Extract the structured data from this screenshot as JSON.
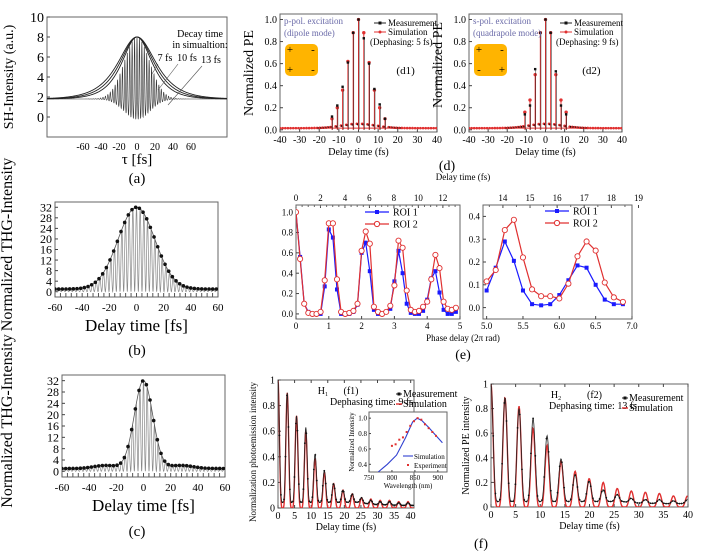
{
  "panel_labels": {
    "a": "(a)",
    "b": "(b)",
    "c": "(c)",
    "d": "(d)",
    "e": "(e)",
    "f": "(f)"
  },
  "chart_data": [
    {
      "id": "a",
      "type": "line",
      "title": "",
      "xlabel": "τ [fs]",
      "ylabel": "SH-Intensity (a.u.)",
      "xlim": [
        -100,
        100
      ],
      "ylim": [
        -2,
        10
      ],
      "xticks": [
        -60,
        -40,
        -20,
        0,
        20,
        40,
        60
      ],
      "yticks": [
        0,
        2,
        4,
        6,
        8,
        10
      ],
      "annotations": [
        "Decay time",
        "in simualtion:",
        "7 fs",
        "10 fs",
        "13 fs"
      ],
      "baseline": 1.8,
      "peak": 8,
      "envelope_decay_fs": [
        7,
        10,
        13
      ],
      "fringe_period_fs": 2.7
    },
    {
      "id": "b",
      "type": "line",
      "xlabel": "Delay time [fs]",
      "ylabel": "Normalized THG-Intensity",
      "xlim": [
        -60,
        60
      ],
      "ylim": [
        -2,
        34
      ],
      "xticks": [
        -60,
        -40,
        -20,
        0,
        20,
        40,
        60
      ],
      "yticks": [
        0,
        4,
        8,
        12,
        16,
        20,
        24,
        28,
        32
      ],
      "baseline": 1,
      "peak": 32,
      "envelope_fwhm_fs": 32,
      "fringe_period_fs": 2.7
    },
    {
      "id": "c",
      "type": "line",
      "xlabel": "Delay time [fs]",
      "ylabel": "Normalized THG-Intensity",
      "xlim": [
        -60,
        60
      ],
      "ylim": [
        -2,
        34
      ],
      "xticks": [
        -60,
        -40,
        -20,
        0,
        20,
        40,
        60
      ],
      "yticks": [
        0,
        4,
        8,
        12,
        16,
        20,
        24,
        28,
        32
      ],
      "baseline": 1,
      "peak": 32,
      "envelope_fwhm_fs": 16,
      "fringe_period_fs": 2.7
    },
    {
      "id": "d1",
      "type": "line",
      "tag": "(d1)",
      "xlabel": "Delay time (fs)",
      "ylabel": "Normalized PE",
      "xlim": [
        -40,
        40
      ],
      "ylim": [
        -0.02,
        1.05
      ],
      "xticks": [
        -40,
        -30,
        -20,
        -10,
        0,
        10,
        20,
        30,
        40
      ],
      "yticks": [
        0.0,
        0.2,
        0.4,
        0.6,
        0.8,
        1.0
      ],
      "inset_text": [
        "p-pol. excitation",
        "(dipole mode)"
      ],
      "inset_signs": [
        "+",
        "-",
        "+",
        "-"
      ],
      "legend": [
        "Measurement",
        "Simulation",
        "(Dephasing: 5 fs)"
      ],
      "peaks": {
        "x": [
          -13.5,
          -10.8,
          -8.1,
          -5.4,
          -2.7,
          0,
          2.7,
          5.4,
          8.1,
          10.8,
          13.5
        ],
        "Measurement": [
          0.12,
          0.22,
          0.39,
          0.61,
          0.88,
          1.0,
          0.83,
          0.6,
          0.37,
          0.23,
          0.1
        ],
        "Simulation": [
          0.1,
          0.2,
          0.36,
          0.62,
          0.88,
          1.0,
          0.88,
          0.61,
          0.36,
          0.2,
          0.1
        ]
      }
    },
    {
      "id": "d2",
      "type": "line",
      "tag": "(d2)",
      "xlabel": "Delay time (fs)",
      "ylabel": "Normalized PE",
      "xlim": [
        -40,
        40
      ],
      "ylim": [
        -0.02,
        1.05
      ],
      "xticks": [
        -40,
        -30,
        -20,
        -10,
        0,
        10,
        20,
        30,
        40
      ],
      "yticks": [
        0.0,
        0.2,
        0.4,
        0.6,
        0.8,
        1.0
      ],
      "inset_text": [
        "s-pol. excitation",
        "(quadrapole mode)"
      ],
      "inset_signs": [
        "+",
        "-",
        "-",
        "+"
      ],
      "legend": [
        "Measurement",
        "Simulation",
        "(Dephasing: 9 fs)"
      ],
      "peaks": {
        "x": [
          -10.8,
          -8.1,
          -5.4,
          -2.7,
          0,
          2.7,
          5.4,
          8.1,
          10.8
        ],
        "Measurement": [
          0.14,
          0.22,
          0.55,
          0.88,
          1.0,
          0.88,
          0.53,
          0.22,
          0.14
        ],
        "Simulation": [
          0.16,
          0.27,
          0.5,
          0.88,
          1.0,
          0.88,
          0.5,
          0.27,
          0.16
        ]
      }
    },
    {
      "id": "e1",
      "type": "line",
      "xlabel_top": "Delay time (fs)",
      "xlabel": "Phase delay (2π rad)",
      "xlim": [
        0,
        5
      ],
      "ylim": [
        -0.05,
        1.07
      ],
      "xticks": [
        0,
        1,
        2,
        3,
        4,
        5
      ],
      "xticks_top": [
        0,
        2,
        4,
        6,
        8,
        10,
        12
      ],
      "yticks": [
        0.0,
        0.2,
        0.4,
        0.6,
        0.8,
        1.0
      ],
      "series": [
        {
          "name": "ROI 1",
          "color": "#1a1aff",
          "x": [
            0,
            0.125,
            0.25,
            0.375,
            0.5,
            0.625,
            0.75,
            0.875,
            1.0,
            1.125,
            1.25,
            1.375,
            1.5,
            1.625,
            1.75,
            1.875,
            2.0,
            2.125,
            2.25,
            2.375,
            2.5,
            2.625,
            2.75,
            2.875,
            3.0,
            3.125,
            3.25,
            3.375,
            3.5,
            3.625,
            3.75,
            3.875,
            4.0,
            4.125,
            4.25,
            4.375,
            4.5,
            4.625,
            4.75,
            4.875
          ],
          "y": [
            1.0,
            0.56,
            0.1,
            0.02,
            0.0,
            0.0,
            0.0,
            0.27,
            0.83,
            0.75,
            0.24,
            0.0,
            0.0,
            0.0,
            0.02,
            0.09,
            0.6,
            0.7,
            0.42,
            0.04,
            0.0,
            0.0,
            0.02,
            0.05,
            0.32,
            0.62,
            0.4,
            0.1,
            0.01,
            0.0,
            0.0,
            0.03,
            0.14,
            0.35,
            0.42,
            0.21,
            0.04,
            0.0,
            0.0,
            0.02
          ]
        },
        {
          "name": "ROI 2",
          "color": "#e03030",
          "x": [
            0,
            0.125,
            0.25,
            0.375,
            0.5,
            0.625,
            0.75,
            0.875,
            1.0,
            1.125,
            1.25,
            1.375,
            1.5,
            1.625,
            1.75,
            1.875,
            2.0,
            2.125,
            2.25,
            2.375,
            2.5,
            2.625,
            2.75,
            2.875,
            3.0,
            3.125,
            3.25,
            3.375,
            3.5,
            3.625,
            3.75,
            3.875,
            4.0,
            4.125,
            4.25,
            4.375,
            4.5,
            4.625,
            4.75,
            4.875
          ],
          "y": [
            1.0,
            0.54,
            0.1,
            0.01,
            0.0,
            0.0,
            0.02,
            0.33,
            0.89,
            0.89,
            0.34,
            0.02,
            0.0,
            0.01,
            0.03,
            0.1,
            0.62,
            0.81,
            0.69,
            0.07,
            0.02,
            0.0,
            0.02,
            0.08,
            0.28,
            0.72,
            0.65,
            0.23,
            0.04,
            0.02,
            0.03,
            0.07,
            0.12,
            0.34,
            0.58,
            0.45,
            0.12,
            0.05,
            0.04,
            0.06
          ]
        }
      ]
    },
    {
      "id": "e2",
      "type": "line",
      "xlim": [
        4.95,
        7.0
      ],
      "ylim": [
        -0.05,
        0.45
      ],
      "xticks": [
        5.0,
        5.5,
        6.0,
        6.5,
        7.0
      ],
      "xticks_top": [
        14,
        15,
        16,
        17,
        18,
        19
      ],
      "yticks": [
        0.0,
        0.1,
        0.2,
        0.3,
        0.4
      ],
      "series": [
        {
          "name": "ROI 1",
          "color": "#1a1aff",
          "x": [
            5.0,
            5.125,
            5.25,
            5.375,
            5.5,
            5.625,
            5.75,
            5.875,
            6.0,
            6.125,
            6.25,
            6.375,
            6.5,
            6.625,
            6.75,
            6.875
          ],
          "y": [
            0.075,
            0.175,
            0.29,
            0.205,
            0.075,
            0.015,
            0.01,
            0.015,
            0.055,
            0.12,
            0.185,
            0.175,
            0.1,
            0.035,
            0.015,
            0.015
          ]
        },
        {
          "name": "ROI 2",
          "color": "#e03030",
          "x": [
            5.0,
            5.125,
            5.25,
            5.375,
            5.5,
            5.625,
            5.75,
            5.875,
            6.0,
            6.125,
            6.25,
            6.375,
            6.5,
            6.625,
            6.75,
            6.875
          ],
          "y": [
            0.115,
            0.165,
            0.34,
            0.385,
            0.22,
            0.08,
            0.05,
            0.05,
            0.04,
            0.105,
            0.225,
            0.29,
            0.25,
            0.11,
            0.045,
            0.025
          ]
        }
      ]
    },
    {
      "id": "f1",
      "type": "line",
      "tag": "(f1)",
      "molecule": "H",
      "molecule_sub": "1",
      "dephasing_text": "Dephasing time: 9 fs",
      "xlabel": "Delay time (fs)",
      "ylabel": "Normalization photoemission intensity",
      "xlim": [
        0,
        41
      ],
      "ylim": [
        0,
        1
      ],
      "xticks": [
        0,
        5,
        10,
        15,
        20,
        25,
        30,
        35,
        40
      ],
      "yticks": [
        0,
        0.2,
        0.4,
        0.6,
        0.8,
        1
      ],
      "ytick_labels": [
        "0",
        "0.2",
        "0.4",
        "0.6",
        "0.8",
        "1"
      ],
      "legend": [
        "Measurement",
        "Simulation"
      ],
      "dephasing_fs": 9,
      "peaks": {
        "x": [
          0,
          2.8,
          5.6,
          8.4,
          11.2,
          14.0,
          16.8,
          19.6,
          22.4,
          25.2,
          28.0,
          30.8,
          33.6,
          36.4,
          39.2
        ],
        "Measurement": [
          1.0,
          0.9,
          0.72,
          0.63,
          0.42,
          0.29,
          0.19,
          0.14,
          0.11,
          0.08,
          0.06,
          0.05,
          0.05,
          0.04,
          0.04
        ],
        "Simulation": [
          1.0,
          0.9,
          0.72,
          0.6,
          0.38,
          0.28,
          0.19,
          0.14,
          0.11,
          0.08,
          0.07,
          0.06,
          0.06,
          0.05,
          0.05
        ]
      },
      "inset": {
        "xlabel": "Wavelength (nm)",
        "ylabel": "Normalized Intensity",
        "xlim": [
          750,
          920
        ],
        "ylim": [
          0.3,
          1.08
        ],
        "xticks": [
          750,
          800,
          850,
          900
        ],
        "yticks": [
          0.4,
          0.6,
          0.8,
          1.0
        ],
        "legend": [
          "Simulation",
          "Experiment"
        ],
        "simulation": {
          "x": [
            770,
            790,
            810,
            830,
            845,
            855,
            865,
            880,
            895,
            910
          ],
          "y": [
            0.3,
            0.4,
            0.52,
            0.75,
            0.95,
            1.0,
            0.97,
            0.88,
            0.78,
            0.68
          ]
        },
        "experiment": {
          "x": [
            800,
            808,
            816,
            824,
            832,
            840,
            848,
            856,
            864,
            872,
            880,
            888,
            896
          ],
          "y": [
            0.64,
            0.66,
            0.72,
            0.75,
            0.82,
            0.9,
            0.96,
            1.0,
            0.98,
            0.92,
            0.87,
            0.82,
            0.77
          ]
        }
      }
    },
    {
      "id": "f2",
      "type": "line",
      "tag": "(f2)",
      "molecule": "H",
      "molecule_sub": "2",
      "dephasing_text": "Dephasing time: 13 fs",
      "xlabel": "Delay time (fs)",
      "ylabel": "Normalized PE intensity",
      "xlim": [
        0,
        40
      ],
      "ylim": [
        0,
        1
      ],
      "xticks": [
        0,
        5,
        10,
        15,
        20,
        25,
        30,
        35,
        40
      ],
      "yticks": [
        0,
        0.2,
        0.4,
        0.6,
        0.8,
        1
      ],
      "ytick_labels": [
        "0",
        "0.2",
        "0.4",
        "0.6",
        "0.8",
        "1"
      ],
      "legend": [
        "Measurement",
        "Simulation"
      ],
      "dephasing_fs": 13,
      "peaks": {
        "x": [
          0,
          2.85,
          5.7,
          8.55,
          11.4,
          14.25,
          17.1,
          19.95,
          22.8,
          25.65,
          28.5,
          31.35,
          34.2,
          37.05,
          39.9
        ],
        "Measurement": [
          1.0,
          0.89,
          0.8,
          0.72,
          0.58,
          0.39,
          0.26,
          0.21,
          0.14,
          0.1,
          0.07,
          0.06,
          0.06,
          0.05,
          0.06
        ],
        "Simulation": [
          1.0,
          0.89,
          0.82,
          0.64,
          0.5,
          0.37,
          0.29,
          0.23,
          0.2,
          0.15,
          0.13,
          0.12,
          0.11,
          0.09,
          0.09
        ]
      }
    }
  ]
}
